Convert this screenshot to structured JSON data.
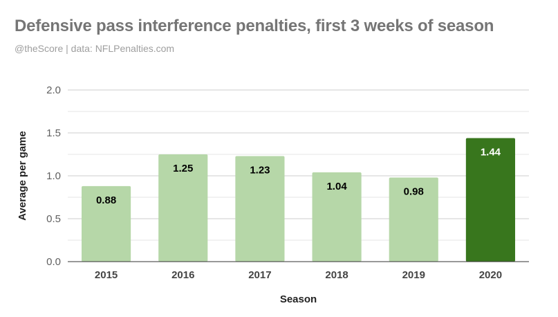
{
  "header": {
    "title": "Defensive pass interference penalties, first 3 weeks of season",
    "subtitle": "@theScore | data: NFLPenalties.com"
  },
  "colors": {
    "bar_default": "#b6d7a8",
    "bar_highlight": "#38761d",
    "label_dark": "#000000",
    "label_light": "#ffffff",
    "grid_major": "#cccccc",
    "grid_minor": "#e6e6e6",
    "baseline": "#333333"
  },
  "chart_data": {
    "type": "bar",
    "title": "Defensive pass interference penalties, first 3 weeks of season",
    "subtitle": "@theScore | data: NFLPenalties.com",
    "xlabel": "Season",
    "ylabel": "Average per game",
    "categories": [
      "2015",
      "2016",
      "2017",
      "2018",
      "2019",
      "2020"
    ],
    "values": [
      0.88,
      1.25,
      1.23,
      1.04,
      0.98,
      1.44
    ],
    "value_labels": [
      "0.88",
      "1.25",
      "1.23",
      "1.04",
      "0.98",
      "1.44"
    ],
    "highlight": "2020",
    "ylim": [
      0,
      2.0
    ],
    "yticks": [
      "0.0",
      "0.5",
      "1.0",
      "1.5",
      "2.0"
    ],
    "grid": true,
    "legend": "none"
  }
}
